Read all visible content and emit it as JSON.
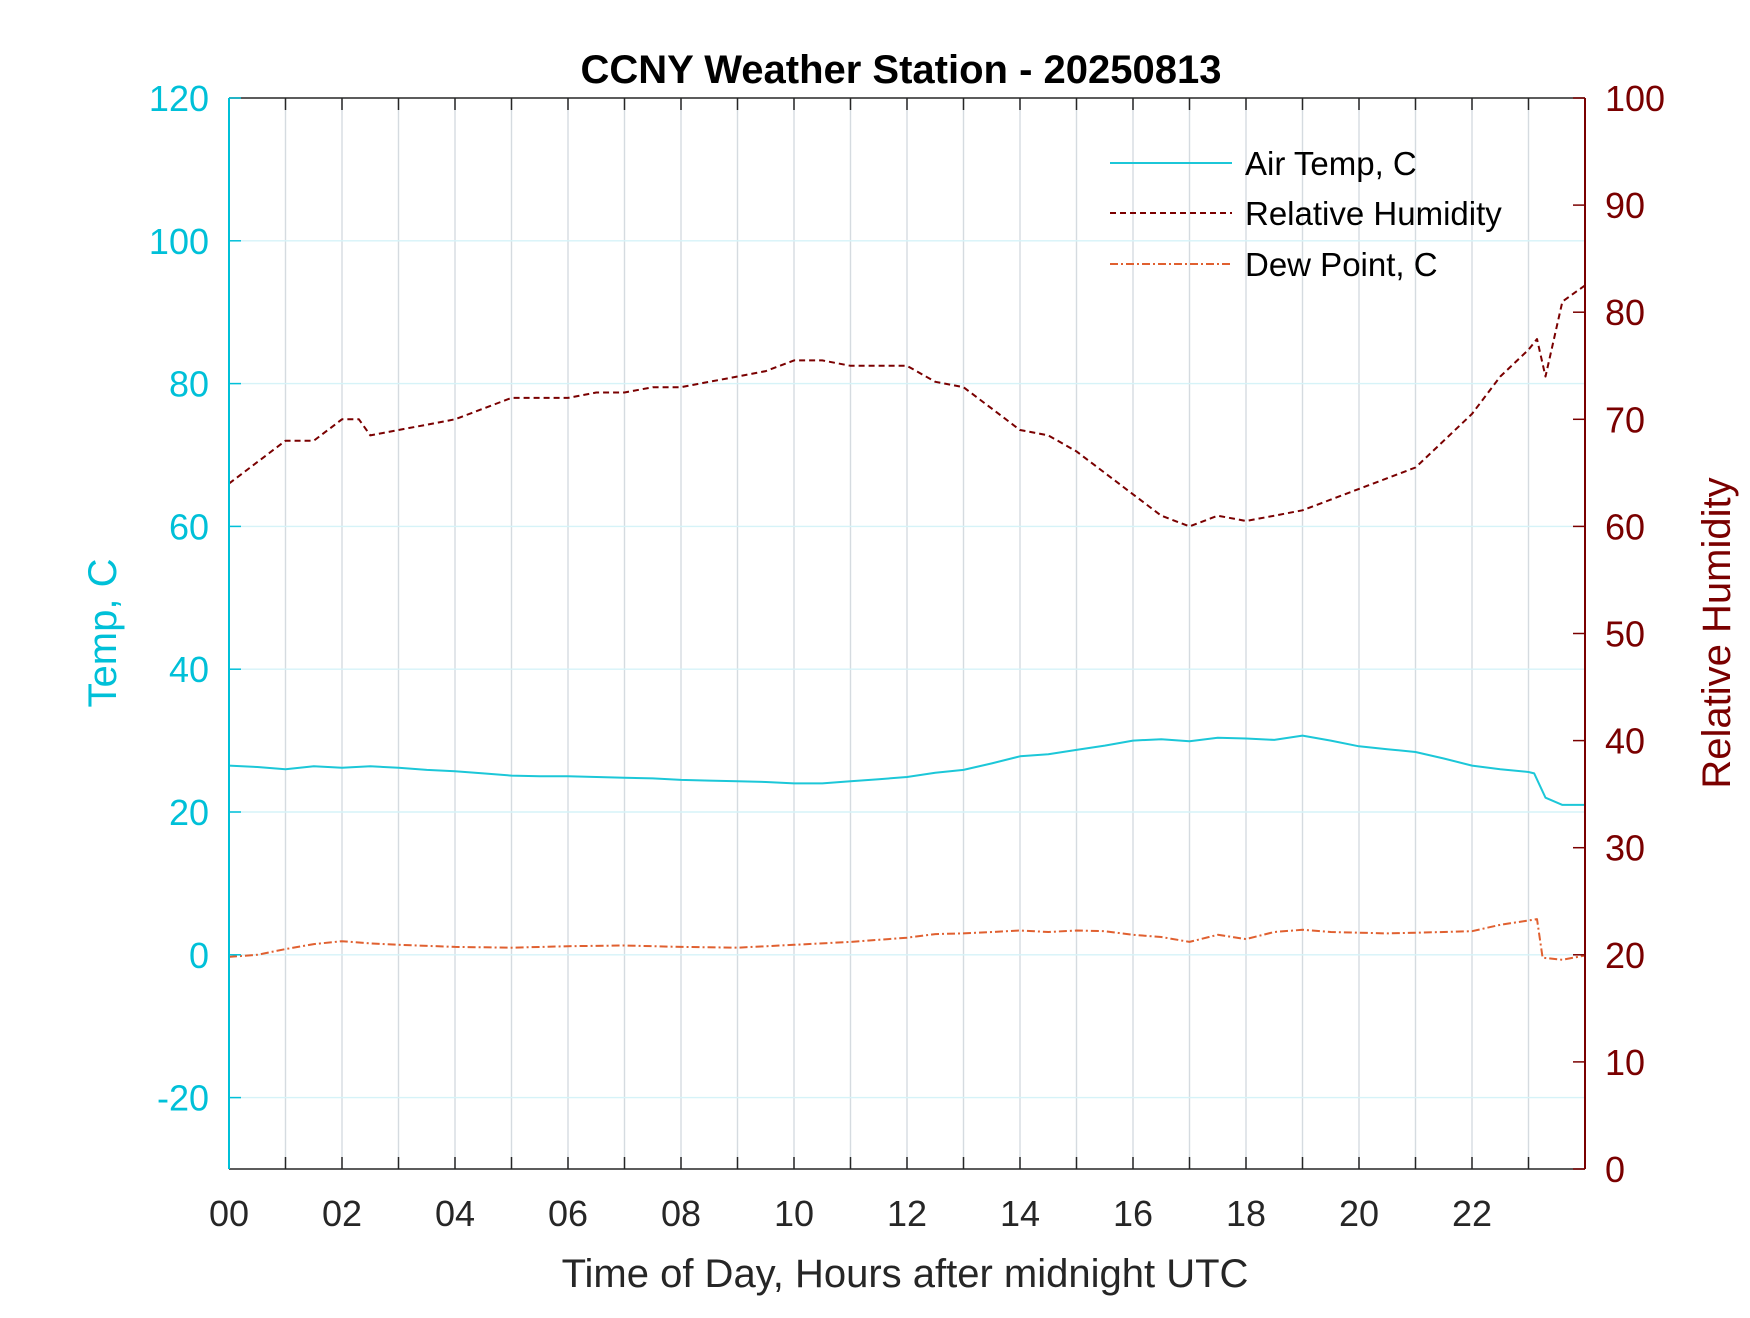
{
  "chart_data": {
    "type": "line",
    "title": "CCNY Weather Station - 20250813",
    "xlabel": "Time of Day, Hours after midnight UTC",
    "ylabel_left": "Temp, C",
    "ylabel_right": "Relative Humidity",
    "xlim": [
      0,
      24
    ],
    "ylim_left": [
      -30,
      120
    ],
    "ylim_right": [
      0,
      100
    ],
    "x_ticks": [
      0,
      2,
      4,
      6,
      8,
      10,
      12,
      14,
      16,
      18,
      20,
      22
    ],
    "x_tick_labels": [
      "00",
      "02",
      "04",
      "06",
      "08",
      "10",
      "12",
      "14",
      "16",
      "18",
      "20",
      "22"
    ],
    "y_left_ticks": [
      -20,
      0,
      20,
      40,
      60,
      80,
      100,
      120
    ],
    "y_left_tick_labels": [
      "-20",
      "0",
      "20",
      "40",
      "60",
      "80",
      "100",
      "120"
    ],
    "y_right_ticks": [
      0,
      10,
      20,
      30,
      40,
      50,
      60,
      70,
      80,
      90,
      100
    ],
    "y_right_tick_labels": [
      "0",
      "10",
      "20",
      "30",
      "40",
      "50",
      "60",
      "70",
      "80",
      "90",
      "100"
    ],
    "grid": true,
    "legend_position": "top-right",
    "colors": {
      "left_axis": "#00c0d8",
      "right_axis": "#7a0000",
      "x_axis": "#262626"
    },
    "series": [
      {
        "name": "Air Temp, C",
        "axis": "left",
        "color": "#1cc7d8",
        "style": "solid",
        "x": [
          0,
          0.5,
          1,
          1.5,
          2,
          2.5,
          3,
          3.5,
          4,
          4.5,
          5,
          5.5,
          6,
          6.5,
          7,
          7.5,
          8,
          8.5,
          9,
          9.5,
          10,
          10.5,
          11,
          11.5,
          12,
          12.5,
          13,
          13.5,
          14,
          14.5,
          15,
          15.5,
          16,
          16.5,
          17,
          17.5,
          18,
          18.5,
          19,
          19.5,
          20,
          20.5,
          21,
          21.5,
          22,
          22.5,
          23,
          23.1,
          23.3,
          23.6,
          24
        ],
        "y": [
          26.5,
          26.3,
          26.0,
          26.4,
          26.2,
          26.4,
          26.2,
          25.9,
          25.7,
          25.4,
          25.1,
          25.0,
          25.0,
          24.9,
          24.8,
          24.7,
          24.5,
          24.4,
          24.3,
          24.2,
          24.0,
          24.0,
          24.3,
          24.6,
          24.9,
          25.5,
          25.9,
          26.8,
          27.8,
          28.1,
          28.7,
          29.3,
          30.0,
          30.2,
          29.9,
          30.4,
          30.3,
          30.1,
          30.7,
          30.0,
          29.2,
          28.8,
          28.4,
          27.5,
          26.5,
          26.0,
          25.6,
          25.4,
          22.0,
          21.0,
          21.0
        ]
      },
      {
        "name": "Relative Humidity",
        "axis": "right",
        "color": "#7a0000",
        "style": "dashed",
        "x": [
          0,
          0.5,
          1,
          1.5,
          2,
          2.3,
          2.5,
          3,
          3.5,
          4,
          4.5,
          5,
          5.5,
          6,
          6.5,
          7,
          7.5,
          8,
          8.5,
          9,
          9.5,
          10,
          10.5,
          11,
          11.5,
          12,
          12.5,
          13,
          13.5,
          14,
          14.5,
          15,
          15.5,
          16,
          16.5,
          17,
          17.5,
          18,
          18.5,
          19,
          19.5,
          20,
          20.5,
          21,
          21.5,
          22,
          22.5,
          23,
          23.15,
          23.3,
          23.6,
          24
        ],
        "y": [
          64,
          66,
          68,
          68,
          70,
          70,
          68.5,
          69,
          69.5,
          70,
          71,
          72,
          72,
          72,
          72.5,
          72.5,
          73,
          73,
          73.5,
          74,
          74.5,
          75.5,
          75.5,
          75,
          75,
          75,
          73.5,
          73,
          71,
          69,
          68.5,
          67,
          65,
          63,
          61,
          60,
          61,
          60.5,
          61,
          61.5,
          62.5,
          63.5,
          64.5,
          65.5,
          68,
          70.5,
          74,
          76.5,
          77.5,
          74,
          81,
          82.5
        ]
      },
      {
        "name": "Dew Point, C",
        "axis": "left",
        "color": "#e06030",
        "style": "dashdot",
        "x": [
          0,
          0.5,
          1,
          1.5,
          2,
          2.5,
          3,
          4,
          5,
          6,
          7,
          8,
          9,
          10,
          11,
          12,
          12.5,
          13,
          13.5,
          14,
          14.5,
          15,
          15.5,
          16,
          16.5,
          17,
          17.5,
          18,
          18.5,
          19,
          19.5,
          20,
          20.5,
          21,
          21.5,
          22,
          22.5,
          23,
          23.15,
          23.25,
          23.6,
          24
        ],
        "y": [
          -0.3,
          0.0,
          0.8,
          1.5,
          1.9,
          1.6,
          1.4,
          1.1,
          1.0,
          1.2,
          1.3,
          1.1,
          1.0,
          1.4,
          1.8,
          2.4,
          2.9,
          3.0,
          3.2,
          3.4,
          3.2,
          3.4,
          3.3,
          2.8,
          2.5,
          1.8,
          2.8,
          2.2,
          3.2,
          3.5,
          3.2,
          3.1,
          3.0,
          3.1,
          3.2,
          3.3,
          4.2,
          4.8,
          5.0,
          -0.4,
          -0.7,
          -0.1
        ]
      }
    ]
  }
}
